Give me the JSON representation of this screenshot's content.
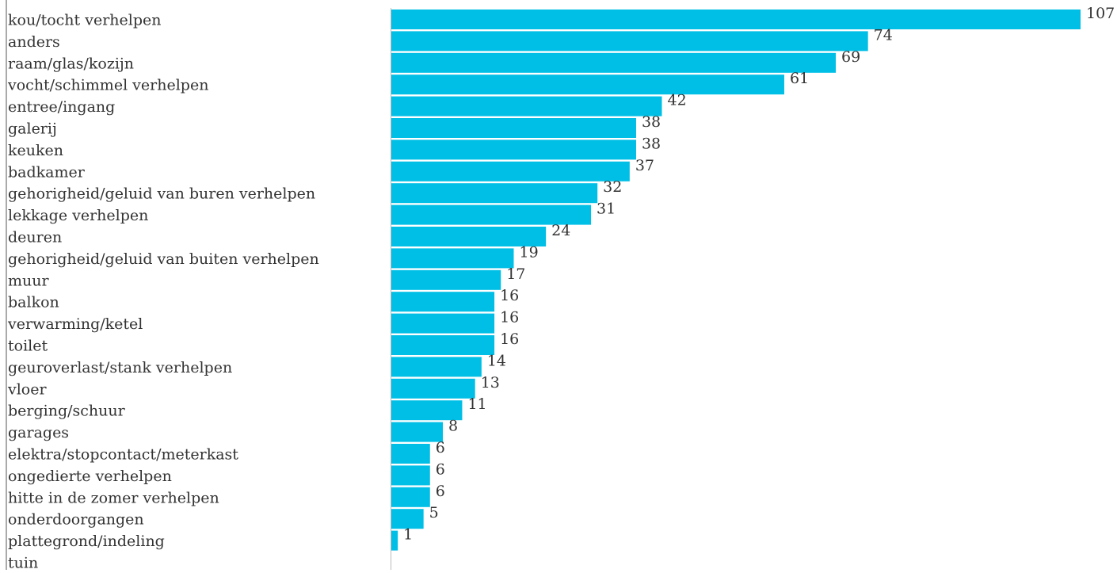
{
  "chart_data": {
    "type": "bar",
    "orientation": "horizontal",
    "title": "",
    "xlabel": "",
    "ylabel": "",
    "bar_color": "#00bfe6",
    "label_color": "#333333",
    "axis_color": "#bbbbbb",
    "grid": false,
    "legend": "none",
    "xlim": [
      0,
      107
    ],
    "categories": [
      "kou/tocht verhelpen",
      "anders",
      "raam/glas/kozijn",
      "vocht/schimmel verhelpen",
      "entree/ingang",
      "galerij",
      "keuken",
      "badkamer",
      "gehorigheid/geluid van buren verhelpen",
      "lekkage verhelpen",
      "deuren",
      "gehorigheid/geluid van buiten verhelpen",
      "muur",
      "balkon",
      "verwarming/ketel",
      "toilet",
      "geuroverlast/stank verhelpen",
      "vloer",
      "berging/schuur",
      "garages",
      "elektra/stopcontact/meterkast",
      "ongedierte verhelpen",
      "hitte in de zomer verhelpen",
      "onderdoorgangen",
      "plattegrond/indeling",
      "tuin"
    ],
    "values": [
      107,
      74,
      69,
      61,
      42,
      38,
      38,
      37,
      32,
      31,
      24,
      19,
      17,
      16,
      16,
      16,
      14,
      13,
      11,
      8,
      6,
      6,
      6,
      5,
      1,
      null
    ],
    "value_labels": [
      "107",
      "74",
      "69",
      "61",
      "42",
      "38",
      "38",
      "37",
      "32",
      "31",
      "24",
      "19",
      "17",
      "16",
      "16",
      "16",
      "14",
      "13",
      "11",
      "8",
      "6",
      "6",
      "6",
      "5",
      "1",
      ""
    ]
  }
}
